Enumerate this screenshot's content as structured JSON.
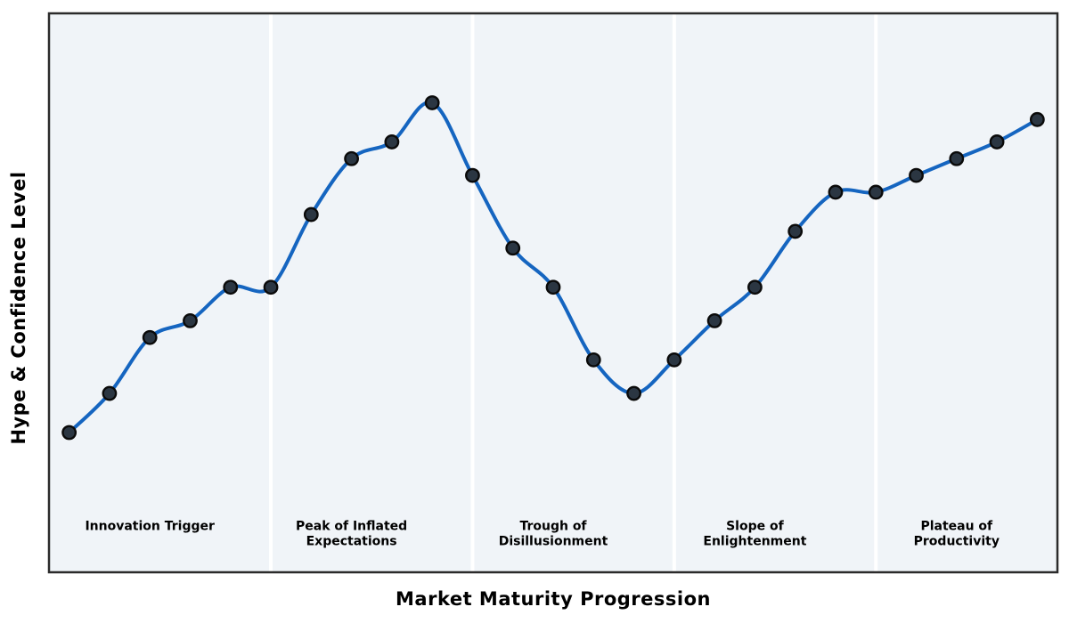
{
  "figure": {
    "xlabel": "Market Maturity Progression",
    "ylabel": "Hype & Confidence Level"
  },
  "chart_data": {
    "type": "line",
    "title": "",
    "xlabel": "Market Maturity Progression",
    "ylabel": "Hype & Confidence Level",
    "x": [
      0,
      1,
      2,
      3,
      4,
      5,
      6,
      7,
      8,
      9,
      10,
      11,
      12,
      13,
      14,
      15,
      16,
      17,
      18,
      19,
      20,
      21,
      22,
      23,
      24
    ],
    "values": [
      25,
      32,
      42,
      45,
      51,
      51,
      64,
      74,
      77,
      84,
      71,
      58,
      51,
      38,
      32,
      38,
      45,
      51,
      61,
      68,
      68,
      71,
      74,
      77,
      81
    ],
    "xlim": [
      -0.5,
      24.5
    ],
    "ylim": [
      0,
      100
    ],
    "grid": false,
    "legend": "none",
    "marker": "circle",
    "smoothing": "spline",
    "axis_ticks": "none",
    "phase_boundaries_x": [
      5,
      10,
      15,
      20
    ],
    "phase_labels": [
      {
        "text": "Innovation Trigger",
        "x": 2
      },
      {
        "text": "Peak of Inflated\nExpectations",
        "x": 7
      },
      {
        "text": "Trough of\nDisillusionment",
        "x": 12
      },
      {
        "text": "Slope of\nEnlightenment",
        "x": 17
      },
      {
        "text": "Plateau of\nProductivity",
        "x": 22
      }
    ],
    "phase_label_top_y": 9.5
  },
  "style": {
    "line_color": "#1565c0",
    "marker_fill": "#2b3642",
    "marker_edge": "#0a0a0a",
    "plot_bg": "#f0f4f8",
    "separator_color": "#ffffff",
    "border_color": "#2b2b2b",
    "text_color": "#000000",
    "figure_bg": "#ffffff"
  }
}
